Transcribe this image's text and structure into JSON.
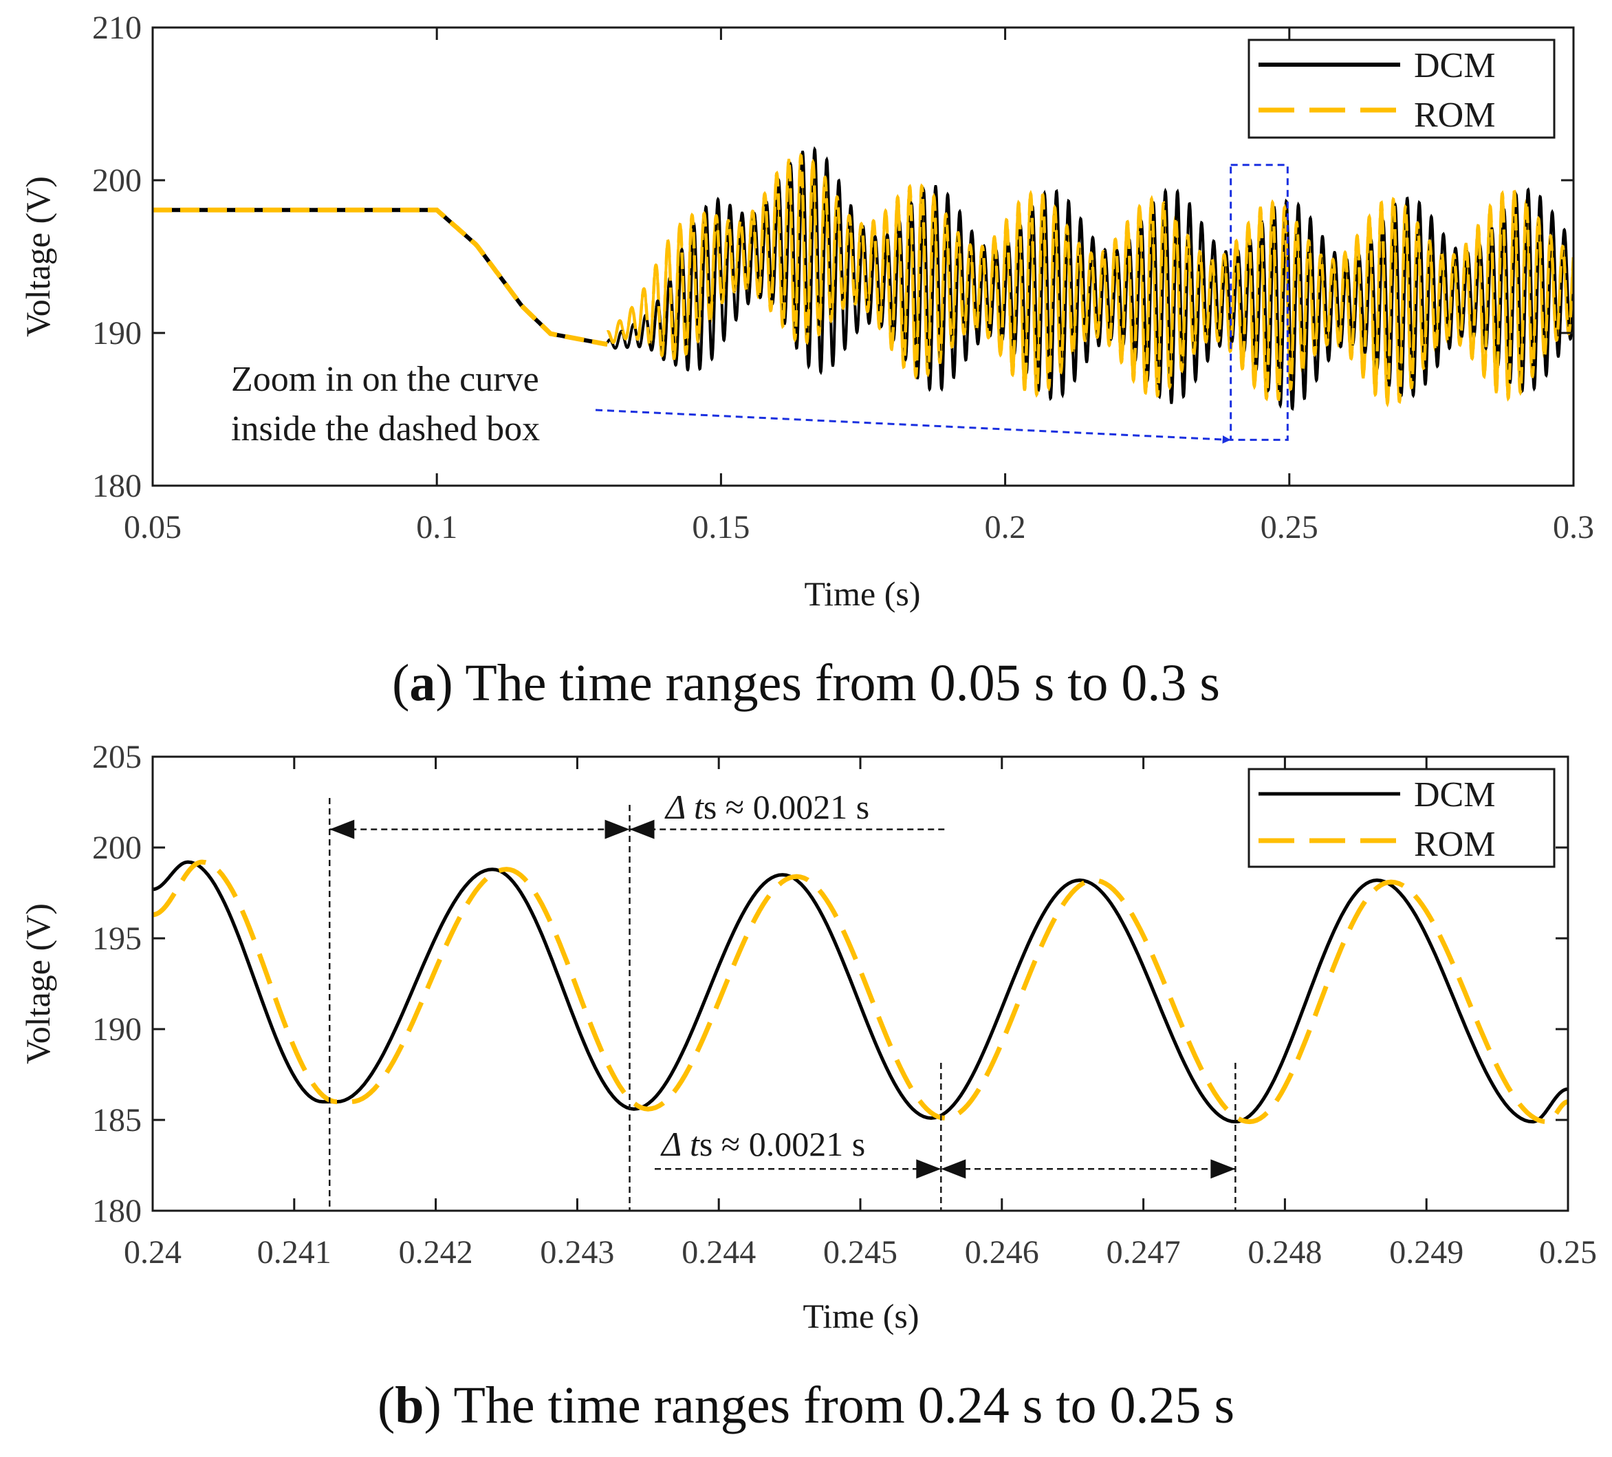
{
  "captions": {
    "a": {
      "letter": "a",
      "text": "The time ranges from 0.05 s to 0.3 s"
    },
    "b": {
      "letter": "b",
      "text": "The time ranges from 0.24 s to 0.25 s"
    }
  },
  "chart_data": [
    {
      "id": "a",
      "type": "line",
      "xlabel": "Time (s)",
      "ylabel": "Voltage (V)",
      "xlim": [
        0.05,
        0.3
      ],
      "ylim": [
        180,
        210
      ],
      "xticks": [
        0.05,
        0.1,
        0.15,
        0.2,
        0.25,
        0.3
      ],
      "xtick_labels": [
        "0.05",
        "0.1",
        "0.15",
        "0.2",
        "0.25",
        "0.3"
      ],
      "yticks": [
        180,
        190,
        200,
        210
      ],
      "ytick_labels": [
        "180",
        "190",
        "200",
        "210"
      ],
      "legend": {
        "location": "top-right",
        "entries": [
          "DCM",
          "ROM"
        ]
      },
      "series": [
        {
          "name": "DCM",
          "color": "#000000",
          "style": "solid",
          "envelope_upper": [
            [
              0.05,
              198.3
            ],
            [
              0.1,
              198.3
            ],
            [
              0.107,
              196
            ],
            [
              0.115,
              192
            ],
            [
              0.12,
              190.2
            ],
            [
              0.13,
              189.5
            ],
            [
              0.14,
              194
            ],
            [
              0.15,
              200
            ],
            [
              0.16,
              203
            ],
            [
              0.17,
              201.5
            ],
            [
              0.18,
              199.8
            ],
            [
              0.2,
              199.3
            ],
            [
              0.24,
              199.4
            ],
            [
              0.25,
              198.6
            ],
            [
              0.27,
              198.8
            ],
            [
              0.3,
              199.6
            ]
          ],
          "envelope_lower": [
            [
              0.05,
              197.8
            ],
            [
              0.1,
              197.8
            ],
            [
              0.107,
              195.5
            ],
            [
              0.115,
              191.5
            ],
            [
              0.12,
              189.7
            ],
            [
              0.13,
              189
            ],
            [
              0.14,
              187
            ],
            [
              0.15,
              188
            ],
            [
              0.16,
              188.5
            ],
            [
              0.17,
              187
            ],
            [
              0.18,
              186.5
            ],
            [
              0.2,
              185.8
            ],
            [
              0.24,
              185.3
            ],
            [
              0.25,
              185
            ],
            [
              0.27,
              185.8
            ],
            [
              0.3,
              186.3
            ]
          ]
        },
        {
          "name": "ROM",
          "color": "#FFBE00",
          "style": "dashed",
          "envelope_upper": [
            [
              0.05,
              198.3
            ],
            [
              0.1,
              198.3
            ],
            [
              0.107,
              196
            ],
            [
              0.115,
              192
            ],
            [
              0.12,
              190.2
            ],
            [
              0.13,
              190.5
            ],
            [
              0.14,
              196
            ],
            [
              0.15,
              200
            ],
            [
              0.16,
              201.5
            ],
            [
              0.17,
              201.8
            ],
            [
              0.18,
              199.8
            ],
            [
              0.2,
              199.3
            ],
            [
              0.24,
              198.5
            ],
            [
              0.25,
              198.6
            ],
            [
              0.27,
              198.8
            ],
            [
              0.3,
              199.6
            ]
          ],
          "envelope_lower": [
            [
              0.05,
              197.8
            ],
            [
              0.1,
              197.8
            ],
            [
              0.107,
              195.5
            ],
            [
              0.115,
              191.5
            ],
            [
              0.12,
              189.7
            ],
            [
              0.13,
              188.8
            ],
            [
              0.14,
              188
            ],
            [
              0.15,
              189.5
            ],
            [
              0.16,
              190
            ],
            [
              0.17,
              188.5
            ],
            [
              0.18,
              187.5
            ],
            [
              0.2,
              186
            ],
            [
              0.24,
              185.8
            ],
            [
              0.25,
              185.5
            ],
            [
              0.27,
              185.3
            ],
            [
              0.3,
              186
            ]
          ]
        }
      ],
      "annotation": {
        "line1": "Zoom in on the curve",
        "line2": "inside the dashed box",
        "box_x": [
          0.2397,
          0.2497
        ],
        "box_y": [
          183,
          201
        ]
      }
    },
    {
      "id": "b",
      "type": "line",
      "xlabel": "Time (s)",
      "ylabel": "Voltage (V)",
      "xlim": [
        0.24,
        0.25
      ],
      "ylim": [
        180,
        205
      ],
      "xticks": [
        0.24,
        0.241,
        0.242,
        0.243,
        0.244,
        0.245,
        0.246,
        0.247,
        0.248,
        0.249,
        0.25
      ],
      "xtick_labels": [
        "0.24",
        "0.241",
        "0.242",
        "0.243",
        "0.244",
        "0.245",
        "0.246",
        "0.247",
        "0.248",
        "0.249",
        "0.25"
      ],
      "yticks": [
        180,
        185,
        190,
        195,
        200,
        205
      ],
      "ytick_labels": [
        "180",
        "185",
        "190",
        "195",
        "200",
        "205"
      ],
      "legend": {
        "location": "top-right",
        "entries": [
          "DCM",
          "ROM"
        ]
      },
      "series": [
        {
          "name": "DCM",
          "color": "#000000",
          "style": "solid",
          "points": [
            [
              0.24,
              197.7
            ],
            [
              0.24025,
              199.2
            ],
            [
              0.2412,
              186
            ],
            [
              0.2413,
              186
            ],
            [
              0.2424,
              198.8
            ],
            [
              0.2434,
              185.6
            ],
            [
              0.24445,
              198.5
            ],
            [
              0.2455,
              185.1
            ],
            [
              0.24655,
              198.2
            ],
            [
              0.24765,
              184.9
            ],
            [
              0.24865,
              198.2
            ],
            [
              0.24975,
              184.9
            ],
            [
              0.25,
              186.7
            ]
          ]
        },
        {
          "name": "ROM",
          "color": "#FFBE00",
          "style": "dashed",
          "points": [
            [
              0.24,
              196.3
            ],
            [
              0.24035,
              199.2
            ],
            [
              0.2413,
              186
            ],
            [
              0.2414,
              186
            ],
            [
              0.2425,
              198.8
            ],
            [
              0.2435,
              185.6
            ],
            [
              0.24455,
              198.4
            ],
            [
              0.2456,
              185.1
            ],
            [
              0.24665,
              198.2
            ],
            [
              0.24775,
              184.9
            ],
            [
              0.24875,
              198.1
            ],
            [
              0.24985,
              184.9
            ],
            [
              0.25,
              186
            ]
          ]
        }
      ],
      "annotations": [
        {
          "delta_symbol": "Δ",
          "var": "t",
          "sub": "s",
          "approx": "≈",
          "value": "0.0021 s",
          "from": 0.24125,
          "to": 0.24337,
          "y": 201
        },
        {
          "delta_symbol": "Δ",
          "var": "t",
          "sub": "s",
          "approx": "≈",
          "value": "0.0021 s",
          "from": 0.24557,
          "to": 0.24765,
          "y": 182.3
        }
      ]
    }
  ]
}
